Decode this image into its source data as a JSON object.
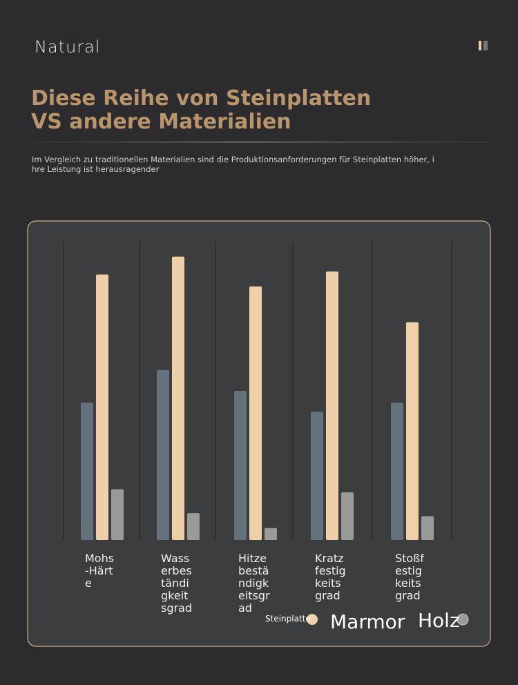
{
  "brand": "Natural",
  "title": "Diese Reihe von Steinplatten VS andere Materialien",
  "subtitle": "Im Vergleich zu traditionellen Materialien sind die Produktionsanforderungen für Steinplatten höher, ihre Leistung ist herausragender",
  "chart_data": {
    "type": "bar",
    "categories": [
      "Mohs-Härte",
      "Wasserbeständigkeitsgrad",
      "Hitzebeständigkeitsgrad",
      "Kratzfestigkeitsgrad",
      "Stoßfestigkeitsgrad"
    ],
    "series": [
      {
        "name": "Steinplatte",
        "color": "#efcfa8",
        "values": [
          89,
          95,
          85,
          90,
          73
        ]
      },
      {
        "name": "Marmor",
        "color": "#64737b",
        "values": [
          46,
          57,
          50,
          43,
          46
        ]
      },
      {
        "name": "Holz",
        "color": "#9a9a9a",
        "values": [
          17,
          9,
          4,
          16,
          8
        ]
      }
    ],
    "ylim": [
      0,
      100
    ]
  }
}
